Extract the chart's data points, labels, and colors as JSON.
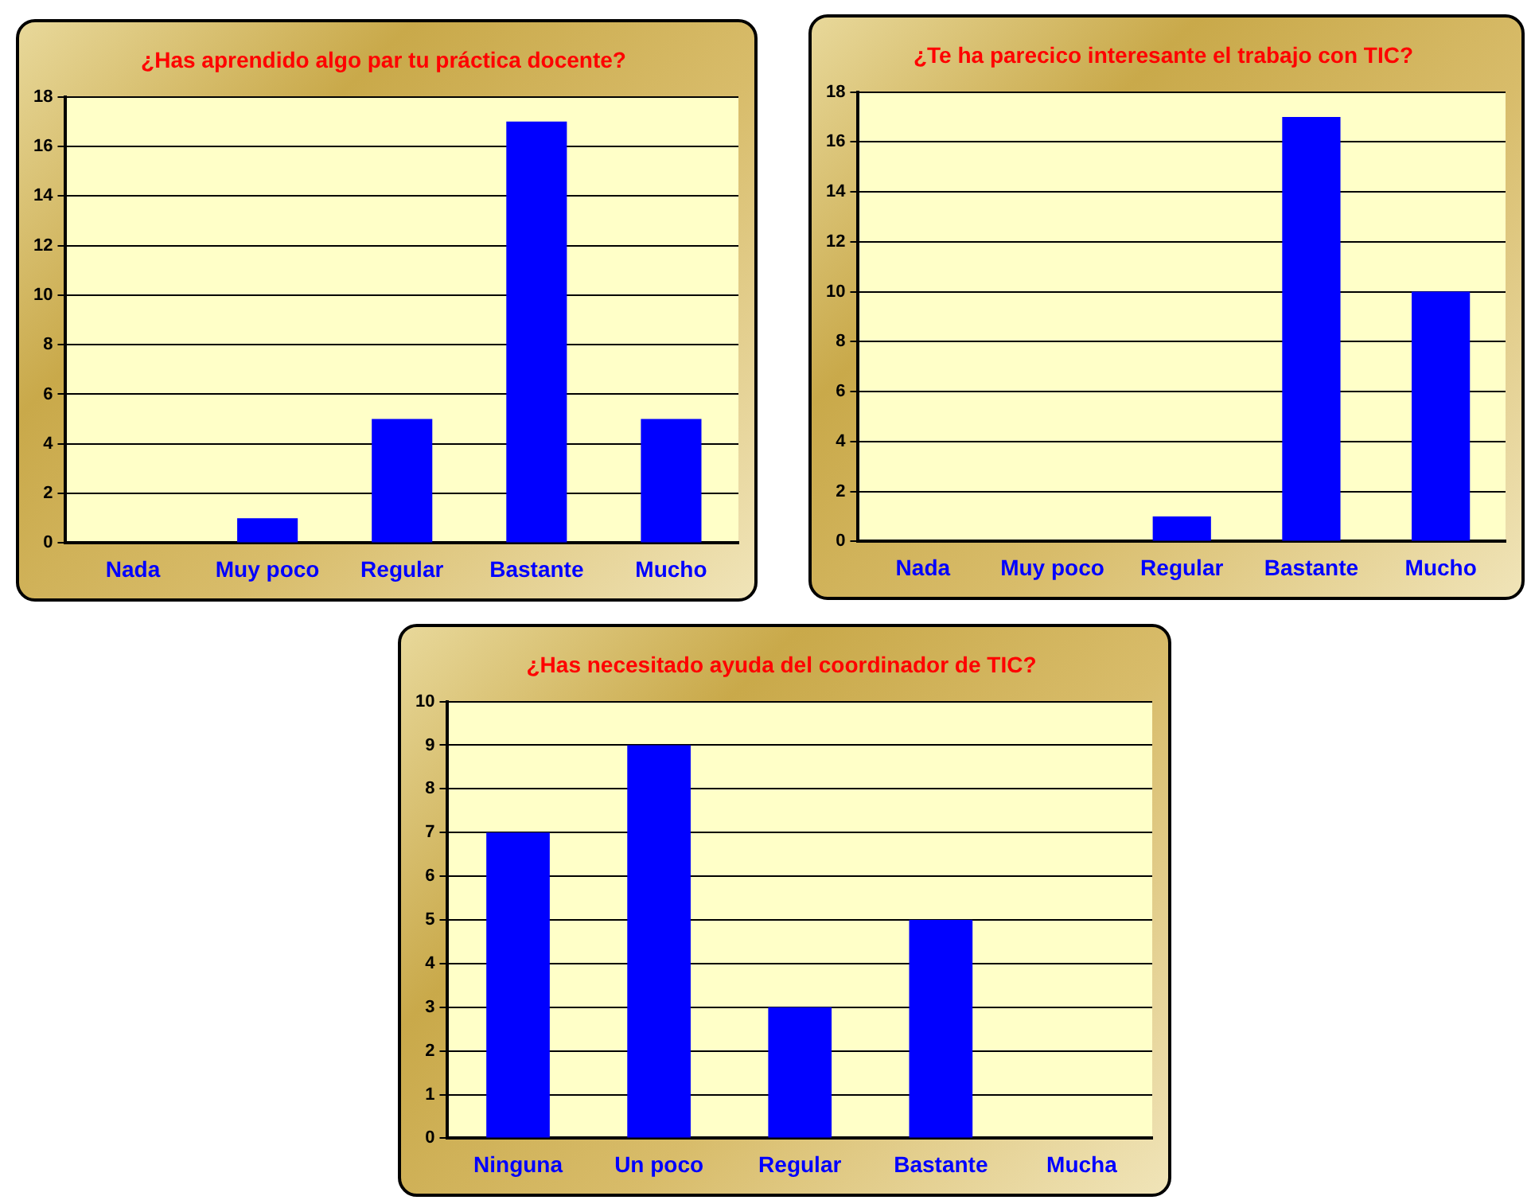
{
  "chart_data": [
    {
      "type": "bar",
      "title": "¿Has aprendido algo par tu práctica docente?",
      "categories": [
        "Nada",
        "Muy poco",
        "Regular",
        "Bastante",
        "Mucho"
      ],
      "values": [
        0,
        1,
        5,
        17,
        5
      ],
      "color": "#0000ff",
      "ylim": [
        0,
        18
      ],
      "yticks": [
        0,
        2,
        4,
        6,
        8,
        10,
        12,
        14,
        16,
        18
      ],
      "grid": "y"
    },
    {
      "type": "bar",
      "title": "¿Te ha parecico interesante el trabajo con TIC?",
      "categories": [
        "Nada",
        "Muy poco",
        "Regular",
        "Bastante",
        "Mucho"
      ],
      "values": [
        0,
        0,
        1,
        17,
        10
      ],
      "color": "#0000ff",
      "ylim": [
        0,
        18
      ],
      "yticks": [
        0,
        2,
        4,
        6,
        8,
        10,
        12,
        14,
        16,
        18
      ],
      "grid": "y"
    },
    {
      "type": "bar",
      "title": "¿Has necesitado ayuda del coordinador de TIC?",
      "categories": [
        "Ninguna",
        "Un poco",
        "Regular",
        "Bastante",
        "Mucha"
      ],
      "values": [
        7,
        9,
        3,
        5,
        0
      ],
      "color": "#0000ff",
      "ylim": [
        0,
        10
      ],
      "yticks": [
        0,
        1,
        2,
        3,
        4,
        5,
        6,
        7,
        8,
        9,
        10
      ],
      "grid": "y"
    }
  ]
}
